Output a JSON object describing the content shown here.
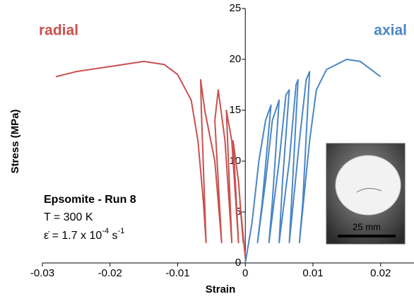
{
  "chart_data": {
    "type": "line",
    "x_label": "Strain",
    "y_label": "Stress (MPa)",
    "xlim": [
      -0.03,
      0.024
    ],
    "ylim": [
      0,
      25
    ],
    "xticks": [
      -0.03,
      -0.02,
      -0.01,
      0,
      0.01,
      0.02
    ],
    "yticks": [
      0,
      5,
      10,
      15,
      20,
      25
    ],
    "series": [
      {
        "name": "radial",
        "color": "#c9514f",
        "x": [
          -0.028,
          -0.025,
          -0.02,
          -0.015,
          -0.012,
          -0.01,
          -0.008,
          -0.007,
          -0.0062,
          -0.0058,
          -0.0065,
          -0.0066,
          -0.006,
          -0.0045,
          -0.0035,
          -0.0045,
          -0.004,
          -0.003,
          -0.002,
          -0.0028,
          -0.002,
          -0.001,
          -0.0018,
          -0.001,
          -0.0003,
          -0.0008,
          0
        ],
        "values": [
          18.3,
          18.8,
          19.3,
          19.8,
          19.5,
          18.5,
          16,
          12,
          6,
          2,
          15,
          18,
          15,
          10,
          2,
          14,
          17,
          12,
          2,
          15,
          12,
          2,
          12,
          8,
          2,
          6,
          0.5
        ]
      },
      {
        "name": "axial",
        "color": "#4a86c5",
        "x": [
          0,
          0.001,
          0.002,
          0.003,
          0.0038,
          0.0025,
          0.0018,
          0.003,
          0.004,
          0.005,
          0.004,
          0.0035,
          0.005,
          0.006,
          0.0065,
          0.0055,
          0.005,
          0.0065,
          0.0075,
          0.0078,
          0.007,
          0.0065,
          0.008,
          0.009,
          0.0095,
          0.0085,
          0.008,
          0.0095,
          0.0105,
          0.012,
          0.015,
          0.017,
          0.02
        ],
        "values": [
          0,
          4,
          10,
          14,
          15.5,
          6,
          2,
          8,
          14,
          16,
          6,
          2,
          10,
          16.5,
          17,
          8,
          2,
          10,
          17.5,
          18,
          8,
          2,
          12,
          18,
          18.8,
          6,
          2,
          12,
          17,
          19,
          20,
          19.8,
          18.3
        ]
      }
    ],
    "annotation": {
      "title": "Epsomite - Run 8",
      "temperature": "T = 300 K",
      "strain_rate": [
        "ε̇ = 1.7 x 10",
        "-4",
        " s",
        "-1"
      ]
    },
    "inset_scale": "25 mm"
  }
}
